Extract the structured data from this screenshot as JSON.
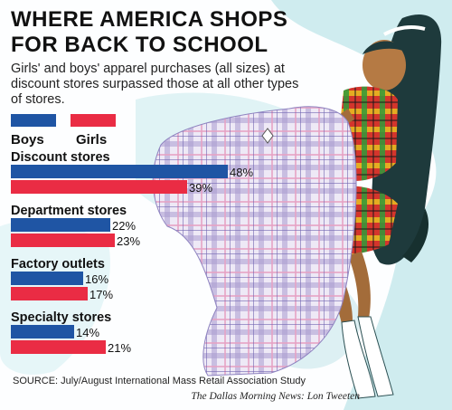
{
  "title_line1": "WHERE AMERICA SHOPS",
  "title_line2": "FOR BACK TO SCHOOL",
  "subtitle": "Girls' and boys' apparel purchases (all sizes) at discount stores surpassed those at all other types of stores.",
  "source": "SOURCE: July/August International Mass Retail Association Study",
  "credit": "The Dallas Morning News: Lon Tweeten",
  "colors": {
    "boys": "#1f55a4",
    "girls": "#ea2c44",
    "ink": "#111111"
  },
  "chart_data": {
    "type": "bar",
    "orientation": "horizontal",
    "categories": [
      "Discount stores",
      "Department stores",
      "Factory outlets",
      "Specialty stores"
    ],
    "series": [
      {
        "name": "Boys",
        "values": [
          48,
          22,
          16,
          14
        ]
      },
      {
        "name": "Girls",
        "values": [
          39,
          23,
          17,
          21
        ]
      }
    ],
    "value_labels": {
      "Boys": [
        "48%",
        "22%",
        "16%",
        "14%"
      ],
      "Girls": [
        "39%",
        "23%",
        "17%",
        "21%"
      ]
    },
    "unit": "%",
    "legend": "top-left",
    "grid": false,
    "xlim": [
      0,
      50
    ]
  }
}
